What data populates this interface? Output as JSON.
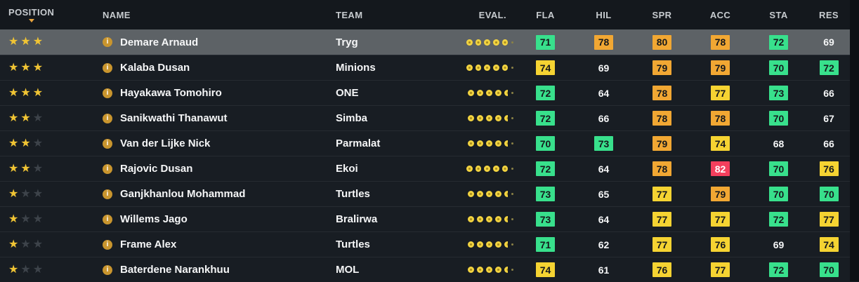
{
  "colors": {
    "row_bg": "#181d23",
    "selected_row_bg": "#5d6266",
    "header_bg": "#14181d",
    "badge_green": "#38e08c",
    "badge_yellow": "#f5d332",
    "badge_orange": "#f1a733",
    "badge_red": "#f43f5d",
    "star_filled": "#f0c434",
    "star_empty": "#3d434a",
    "eval_dot": "#f2d340",
    "sort_arrow": "#e8a33d",
    "info_icon_bg": "#c9952e"
  },
  "table": {
    "columns": [
      {
        "label": "POSITION",
        "sorted": "desc"
      },
      {
        "label": "NAME"
      },
      {
        "label": "TEAM"
      },
      {
        "label": "EVAL."
      },
      {
        "label": "FLA"
      },
      {
        "label": "HIL"
      },
      {
        "label": "SPR"
      },
      {
        "label": "ACC"
      },
      {
        "label": "STA"
      },
      {
        "label": "RES"
      }
    ],
    "rows": [
      {
        "name": "Demare Arnaud",
        "team": "Tryg",
        "selected": true,
        "stars_filled": 3,
        "stars_total": 3,
        "eval_dots": 5,
        "eval_half": false,
        "stats": [
          {
            "value": 71,
            "color": "green"
          },
          {
            "value": 78,
            "color": "orange"
          },
          {
            "value": 80,
            "color": "orange"
          },
          {
            "value": 78,
            "color": "orange"
          },
          {
            "value": 72,
            "color": "green"
          },
          {
            "value": 69,
            "color": "none"
          }
        ]
      },
      {
        "name": "Kalaba Dusan",
        "team": "Minions",
        "selected": false,
        "stars_filled": 3,
        "stars_total": 3,
        "eval_dots": 5,
        "eval_half": false,
        "stats": [
          {
            "value": 74,
            "color": "yellow"
          },
          {
            "value": 69,
            "color": "none"
          },
          {
            "value": 79,
            "color": "orange"
          },
          {
            "value": 79,
            "color": "orange"
          },
          {
            "value": 70,
            "color": "green"
          },
          {
            "value": 72,
            "color": "green"
          }
        ]
      },
      {
        "name": "Hayakawa Tomohiro",
        "team": "ONE",
        "selected": false,
        "stars_filled": 3,
        "stars_total": 3,
        "eval_dots": 4,
        "eval_half": true,
        "stats": [
          {
            "value": 72,
            "color": "green"
          },
          {
            "value": 64,
            "color": "none"
          },
          {
            "value": 78,
            "color": "orange"
          },
          {
            "value": 77,
            "color": "yellow"
          },
          {
            "value": 73,
            "color": "green"
          },
          {
            "value": 66,
            "color": "none"
          }
        ]
      },
      {
        "name": "Sanikwathi Thanawut",
        "team": "Simba",
        "selected": false,
        "stars_filled": 2,
        "stars_total": 3,
        "eval_dots": 4,
        "eval_half": true,
        "stats": [
          {
            "value": 72,
            "color": "green"
          },
          {
            "value": 66,
            "color": "none"
          },
          {
            "value": 78,
            "color": "orange"
          },
          {
            "value": 78,
            "color": "orange"
          },
          {
            "value": 70,
            "color": "green"
          },
          {
            "value": 67,
            "color": "none"
          }
        ]
      },
      {
        "name": "Van der Lijke Nick",
        "team": "Parmalat",
        "selected": false,
        "stars_filled": 2,
        "stars_total": 3,
        "eval_dots": 4,
        "eval_half": true,
        "stats": [
          {
            "value": 70,
            "color": "green"
          },
          {
            "value": 73,
            "color": "green"
          },
          {
            "value": 79,
            "color": "orange"
          },
          {
            "value": 74,
            "color": "yellow"
          },
          {
            "value": 68,
            "color": "none"
          },
          {
            "value": 66,
            "color": "none"
          }
        ]
      },
      {
        "name": "Rajovic Dusan",
        "team": "Ekoi",
        "selected": false,
        "stars_filled": 2,
        "stars_total": 3,
        "eval_dots": 5,
        "eval_half": false,
        "stats": [
          {
            "value": 72,
            "color": "green"
          },
          {
            "value": 64,
            "color": "none"
          },
          {
            "value": 78,
            "color": "orange"
          },
          {
            "value": 82,
            "color": "red"
          },
          {
            "value": 70,
            "color": "green"
          },
          {
            "value": 76,
            "color": "yellow"
          }
        ]
      },
      {
        "name": "Ganjkhanlou Mohammad",
        "team": "Turtles",
        "selected": false,
        "stars_filled": 1,
        "stars_total": 3,
        "eval_dots": 4,
        "eval_half": true,
        "stats": [
          {
            "value": 73,
            "color": "green"
          },
          {
            "value": 65,
            "color": "none"
          },
          {
            "value": 77,
            "color": "yellow"
          },
          {
            "value": 79,
            "color": "orange"
          },
          {
            "value": 70,
            "color": "green"
          },
          {
            "value": 70,
            "color": "green"
          }
        ]
      },
      {
        "name": "Willems Jago",
        "team": "Bralirwa",
        "selected": false,
        "stars_filled": 1,
        "stars_total": 3,
        "eval_dots": 4,
        "eval_half": true,
        "stats": [
          {
            "value": 73,
            "color": "green"
          },
          {
            "value": 64,
            "color": "none"
          },
          {
            "value": 77,
            "color": "yellow"
          },
          {
            "value": 77,
            "color": "yellow"
          },
          {
            "value": 72,
            "color": "green"
          },
          {
            "value": 77,
            "color": "yellow"
          }
        ]
      },
      {
        "name": "Frame Alex",
        "team": "Turtles",
        "selected": false,
        "stars_filled": 1,
        "stars_total": 3,
        "eval_dots": 4,
        "eval_half": true,
        "stats": [
          {
            "value": 71,
            "color": "green"
          },
          {
            "value": 62,
            "color": "none"
          },
          {
            "value": 77,
            "color": "yellow"
          },
          {
            "value": 76,
            "color": "yellow"
          },
          {
            "value": 69,
            "color": "none"
          },
          {
            "value": 74,
            "color": "yellow"
          }
        ]
      },
      {
        "name": "Baterdene Narankhuu",
        "team": "MOL",
        "selected": false,
        "stars_filled": 1,
        "stars_total": 3,
        "eval_dots": 4,
        "eval_half": true,
        "stats": [
          {
            "value": 74,
            "color": "yellow"
          },
          {
            "value": 61,
            "color": "none"
          },
          {
            "value": 76,
            "color": "yellow"
          },
          {
            "value": 77,
            "color": "yellow"
          },
          {
            "value": 72,
            "color": "green"
          },
          {
            "value": 70,
            "color": "green"
          }
        ]
      }
    ]
  },
  "icons": {
    "info": "info-icon",
    "star_filled": "star-filled-icon",
    "star_empty": "star-empty-icon",
    "eval_dot": "eval-dot-icon",
    "sort_descending": "sort-descending-icon"
  }
}
